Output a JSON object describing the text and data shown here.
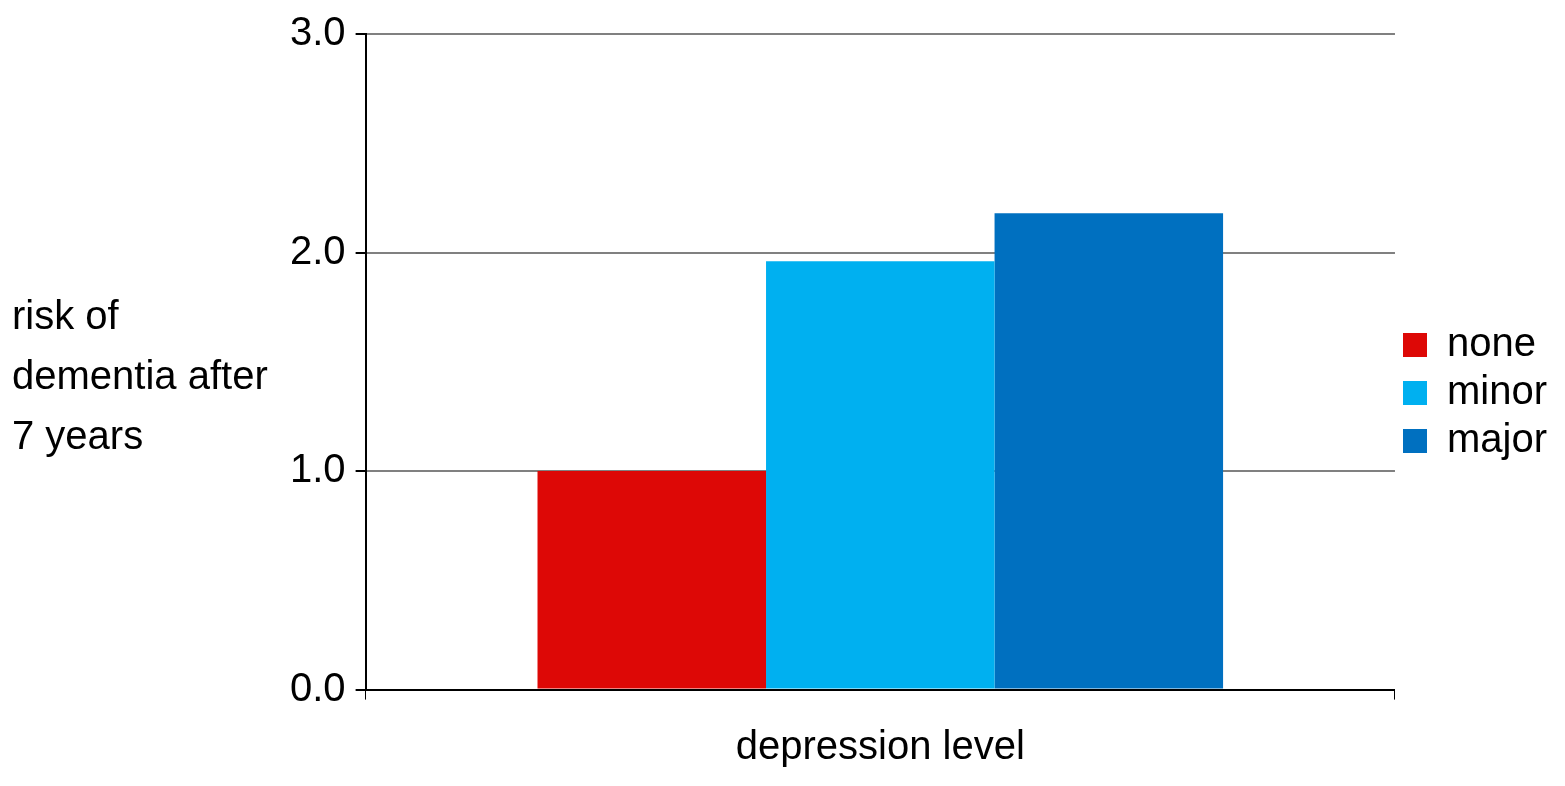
{
  "chart_data": {
    "type": "bar",
    "categories": [
      null
    ],
    "xlabel": "depression level",
    "ylabel": "risk of dementia after 7 years",
    "series": [
      {
        "name": "none",
        "color": "#dd0806",
        "values": [
          1.0
        ]
      },
      {
        "name": "minor",
        "color": "#00b0f0",
        "values": [
          1.96
        ]
      },
      {
        "name": "major",
        "color": "#0070c0",
        "values": [
          2.18
        ]
      }
    ],
    "ylim": [
      0,
      3
    ],
    "yticks": [
      {
        "value": 0,
        "label": "0.0"
      },
      {
        "value": 1,
        "label": "1.0"
      },
      {
        "value": 2,
        "label": "2.0"
      },
      {
        "value": 3,
        "label": "3.0"
      }
    ],
    "grid": "y",
    "legend": "right"
  }
}
